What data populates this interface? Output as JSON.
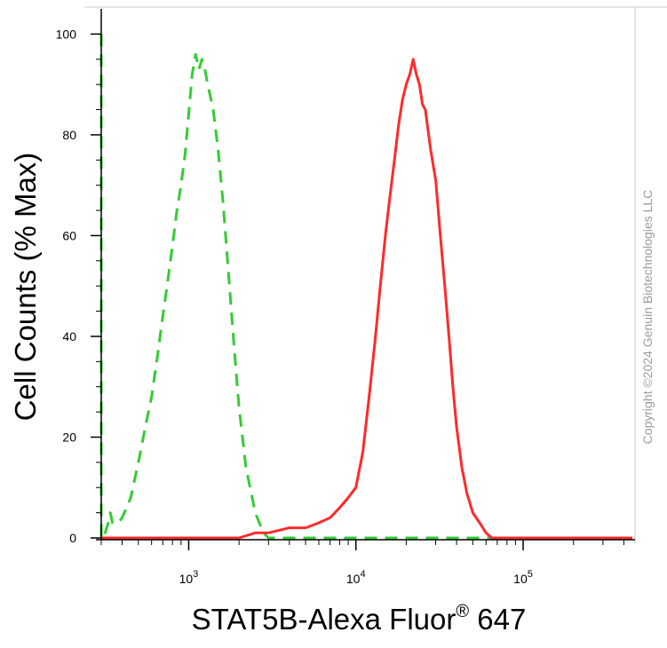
{
  "chart_data": {
    "type": "line",
    "xlabel": "STAT5B-Alexa Fluor",
    "xlabel_superscript": "®",
    "xlabel_suffix": " 647",
    "ylabel": "Cell Counts (% Max)",
    "x_scale": "log",
    "xlim": [
      300,
      450000
    ],
    "ylim": [
      0,
      105
    ],
    "x_ticks": [
      {
        "value": 1000,
        "base": "10",
        "exp": "3"
      },
      {
        "value": 10000,
        "base": "10",
        "exp": "4"
      },
      {
        "value": 100000,
        "base": "10",
        "exp": "5"
      }
    ],
    "y_ticks": [
      0,
      20,
      40,
      60,
      80,
      100
    ],
    "grid": false,
    "legend": "none",
    "series": [
      {
        "color": "#33cc33",
        "dash": "dashed",
        "points": [
          [
            300,
            100
          ],
          [
            300,
            60
          ],
          [
            300,
            0
          ],
          [
            310,
            0
          ],
          [
            330,
            3
          ],
          [
            340,
            5
          ],
          [
            350,
            3
          ],
          [
            370,
            3
          ],
          [
            380,
            3
          ],
          [
            400,
            4
          ],
          [
            450,
            8
          ],
          [
            500,
            15
          ],
          [
            550,
            22
          ],
          [
            600,
            28
          ],
          [
            650,
            36
          ],
          [
            700,
            44
          ],
          [
            750,
            51
          ],
          [
            800,
            58
          ],
          [
            850,
            65
          ],
          [
            900,
            70
          ],
          [
            950,
            76
          ],
          [
            1000,
            84
          ],
          [
            1050,
            92
          ],
          [
            1100,
            96
          ],
          [
            1150,
            93
          ],
          [
            1200,
            95
          ],
          [
            1250,
            93
          ],
          [
            1300,
            90
          ],
          [
            1400,
            85
          ],
          [
            1500,
            77
          ],
          [
            1600,
            67
          ],
          [
            1700,
            56
          ],
          [
            1800,
            45
          ],
          [
            1900,
            35
          ],
          [
            2000,
            26
          ],
          [
            2200,
            14
          ],
          [
            2500,
            5
          ],
          [
            2800,
            1
          ],
          [
            3000,
            0
          ],
          [
            10000,
            0
          ],
          [
            100000,
            0
          ],
          [
            450000,
            0
          ]
        ]
      },
      {
        "color": "#ff2a2a",
        "dash": "solid",
        "points": [
          [
            300,
            0
          ],
          [
            500,
            0
          ],
          [
            600,
            0
          ],
          [
            700,
            0
          ],
          [
            1000,
            0
          ],
          [
            2000,
            0
          ],
          [
            2500,
            1
          ],
          [
            3000,
            1
          ],
          [
            4000,
            2
          ],
          [
            5000,
            2
          ],
          [
            6000,
            3
          ],
          [
            7000,
            4
          ],
          [
            8000,
            6
          ],
          [
            9000,
            8
          ],
          [
            10000,
            10
          ],
          [
            11000,
            17
          ],
          [
            12000,
            28
          ],
          [
            13000,
            39
          ],
          [
            14000,
            50
          ],
          [
            15000,
            60
          ],
          [
            16000,
            68
          ],
          [
            17000,
            75
          ],
          [
            18000,
            82
          ],
          [
            19000,
            87
          ],
          [
            20000,
            90
          ],
          [
            21000,
            92
          ],
          [
            22000,
            95
          ],
          [
            23000,
            92
          ],
          [
            24000,
            90
          ],
          [
            25000,
            86
          ],
          [
            26000,
            85
          ],
          [
            27000,
            81
          ],
          [
            28000,
            77
          ],
          [
            30000,
            71
          ],
          [
            32000,
            60
          ],
          [
            34000,
            50
          ],
          [
            36000,
            40
          ],
          [
            38000,
            30
          ],
          [
            40000,
            22
          ],
          [
            43000,
            14
          ],
          [
            46000,
            9
          ],
          [
            50000,
            5
          ],
          [
            55000,
            3
          ],
          [
            60000,
            1
          ],
          [
            65000,
            0
          ],
          [
            100000,
            0
          ],
          [
            450000,
            0
          ]
        ]
      }
    ]
  },
  "watermark": "Copyright ©2024 Genuin Biotechnologies LLC"
}
